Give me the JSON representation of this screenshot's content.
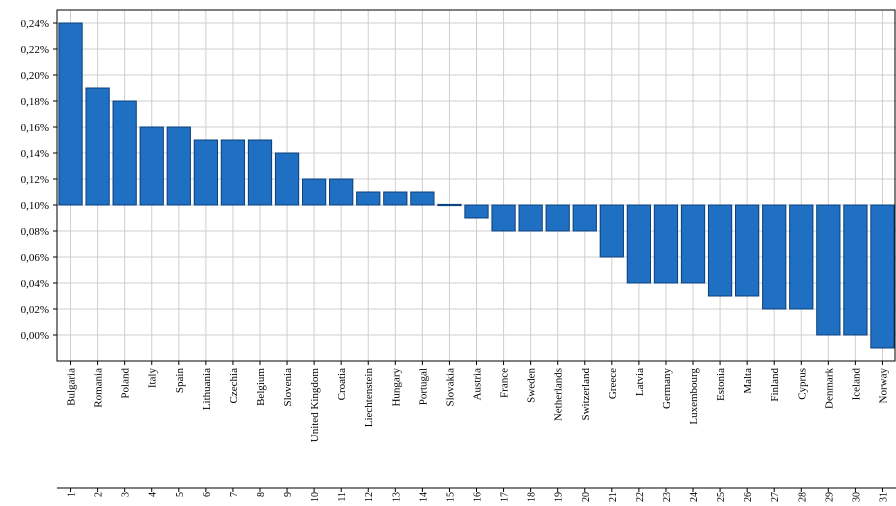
{
  "chart_data": {
    "type": "bar",
    "title": "",
    "xlabel": "",
    "ylabel": "",
    "baseline": 0.1,
    "ylim": [
      -0.02,
      0.25
    ],
    "ytick_values": [
      0.0,
      0.02,
      0.04,
      0.06,
      0.08,
      0.1,
      0.12,
      0.14,
      0.16,
      0.18,
      0.2,
      0.22,
      0.24
    ],
    "ytick_labels": [
      "0,00%",
      "0,02%",
      "0,04%",
      "0,06%",
      "0,08%",
      "0,10%",
      "0,12%",
      "0,14%",
      "0,16%",
      "0,18%",
      "0,20%",
      "0,22%",
      "0,24%"
    ],
    "grid": true,
    "bar_color": "#1f6fc2",
    "categories": [
      "Bulgaria",
      "Romania",
      "Poland",
      "Italy",
      "Spain",
      "Lithuania",
      "Czechia",
      "Belgium",
      "Slovenia",
      "United Kingdom",
      "Croatia",
      "Liechtenstein",
      "Hungary",
      "Portugal",
      "Slovakia",
      "Austria",
      "France",
      "Sweden",
      "Netherlands",
      "Switzerland",
      "Greece",
      "Latvia",
      "Germany",
      "Luxembourg",
      "Estonia",
      "Malta",
      "Finland",
      "Cyprus",
      "Denmark",
      "Iceland",
      "Norway"
    ],
    "category_numbers": [
      "1",
      "2",
      "3",
      "4",
      "5",
      "6",
      "7",
      "8",
      "9",
      "10",
      "11",
      "12",
      "13",
      "14",
      "15",
      "16",
      "17",
      "18",
      "19",
      "20",
      "21",
      "22",
      "23",
      "24",
      "25",
      "26",
      "27",
      "28",
      "29",
      "30",
      "31"
    ],
    "values": [
      0.24,
      0.19,
      0.18,
      0.16,
      0.16,
      0.15,
      0.15,
      0.15,
      0.14,
      0.12,
      0.12,
      0.11,
      0.11,
      0.11,
      0.1,
      0.09,
      0.08,
      0.08,
      0.08,
      0.08,
      0.06,
      0.04,
      0.04,
      0.04,
      0.03,
      0.03,
      0.02,
      0.02,
      0.0,
      0.0,
      -0.01
    ]
  }
}
